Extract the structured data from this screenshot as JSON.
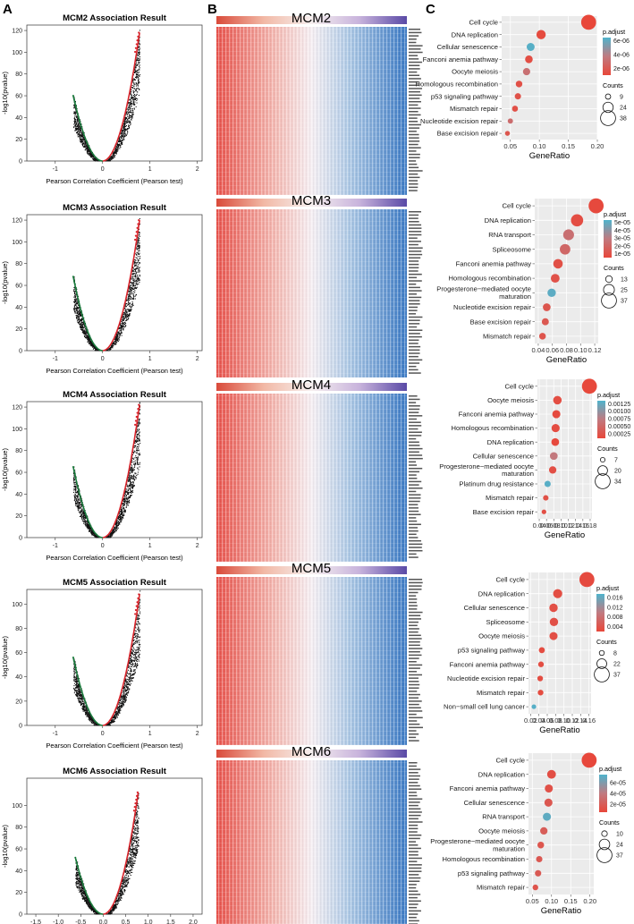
{
  "panel_labels": [
    "A",
    "B",
    "C"
  ],
  "chart_data": {
    "volcano": [
      {
        "gene": "MCM2",
        "title": "MCM2 Association Result",
        "xlabel": "Pearson Correlation Coefficient (Pearson test)",
        "ylabel": "-log10(pvalue)",
        "xlim": [
          -1.6,
          2.1
        ],
        "ylim": [
          0,
          125
        ],
        "xticks": [
          "-1",
          "0",
          "1",
          "2"
        ],
        "xtick_values": [
          -1,
          0,
          1,
          2
        ],
        "yticks": [
          0,
          20,
          40,
          60,
          80,
          100,
          120
        ],
        "red_arm_end": [
          0.78,
          118
        ],
        "green_arm_end": [
          -0.62,
          60
        ]
      },
      {
        "gene": "MCM3",
        "title": "MCM3 Association Result",
        "xlabel": "Pearson Correlation Coefficient (Pearson test)",
        "ylabel": "-log10(pvalue)",
        "xlim": [
          -1.6,
          2.1
        ],
        "ylim": [
          0,
          125
        ],
        "xticks": [
          "-1",
          "0",
          "1",
          "2"
        ],
        "xtick_values": [
          -1,
          0,
          1,
          2
        ],
        "yticks": [
          0,
          20,
          40,
          60,
          80,
          100,
          120
        ],
        "red_arm_end": [
          0.78,
          120
        ],
        "green_arm_end": [
          -0.62,
          68
        ]
      },
      {
        "gene": "MCM4",
        "title": "MCM4 Association Result",
        "xlabel": "Pearson Correlation Coefficient (Pearson test)",
        "ylabel": "-log10(pvalue)",
        "xlim": [
          -1.6,
          2.1
        ],
        "ylim": [
          0,
          125
        ],
        "xticks": [
          "-1",
          "0",
          "1",
          "2"
        ],
        "xtick_values": [
          -1,
          0,
          1,
          2
        ],
        "yticks": [
          0,
          20,
          40,
          60,
          80,
          100,
          120
        ],
        "red_arm_end": [
          0.78,
          122
        ],
        "green_arm_end": [
          -0.62,
          65
        ]
      },
      {
        "gene": "MCM5",
        "title": "MCM5 Association Result",
        "xlabel": "Pearson Correlation Coefficient (Pearson test)",
        "ylabel": "-log10(pvalue)",
        "xlim": [
          -1.6,
          2.1
        ],
        "ylim": [
          0,
          112
        ],
        "xticks": [
          "-1",
          "0",
          "1",
          "2"
        ],
        "xtick_values": [
          -1,
          0,
          1,
          2
        ],
        "yticks": [
          0,
          20,
          40,
          60,
          80,
          100
        ],
        "red_arm_end": [
          0.78,
          108
        ],
        "green_arm_end": [
          -0.62,
          56
        ]
      },
      {
        "gene": "MCM6",
        "title": "MCM6 Association Result",
        "xlabel": "Pearson Correlation Coefficient (Pearson test)",
        "ylabel": "-log10(pvalue)",
        "xlim": [
          -1.7,
          2.2
        ],
        "ylim": [
          0,
          125
        ],
        "xticks": [
          "-1.5",
          "-1.0",
          "-0.5",
          "0.0",
          "0.5",
          "1.0",
          "1.5",
          "2.0"
        ],
        "xtick_values": [
          -1.5,
          -1.0,
          -0.5,
          0.0,
          0.5,
          1.0,
          1.5,
          2.0
        ],
        "yticks": [
          0,
          20,
          40,
          60,
          80,
          100
        ],
        "red_arm_end": [
          0.78,
          112
        ],
        "green_arm_end": [
          -0.62,
          52
        ]
      }
    ],
    "heatmaps": [
      {
        "title": "MCM2"
      },
      {
        "title": "MCM3"
      },
      {
        "title": "MCM4"
      },
      {
        "title": "MCM5"
      },
      {
        "title": "MCM6"
      }
    ],
    "enrichment": [
      {
        "type": "scatter",
        "xlabel": "GeneRatio",
        "xlim": [
          0.035,
          0.2
        ],
        "xticks": [
          {
            "v": 0.05,
            "t": "0.05"
          },
          {
            "v": 0.1,
            "t": "0.10"
          },
          {
            "v": 0.15,
            "t": "0.15"
          },
          {
            "v": 0.2,
            "t": "0.20"
          }
        ],
        "padj_range": [
          1e-06,
          6.5e-06
        ],
        "padj_ticks": [
          {
            "v": 6e-06,
            "t": "6e-06"
          },
          {
            "v": 4e-06,
            "t": "4e-06"
          },
          {
            "v": 2e-06,
            "t": "2e-06"
          }
        ],
        "counts_legend": [
          9,
          24,
          38
        ],
        "count_range": [
          5,
          38
        ],
        "terms": [
          {
            "name": "Cell cycle",
            "ratio": 0.185,
            "padj": 1e-06,
            "count": 38
          },
          {
            "name": "DNA replication",
            "ratio": 0.103,
            "padj": 1.2e-06,
            "count": 21
          },
          {
            "name": "Cellular senescence",
            "ratio": 0.085,
            "padj": 6.3e-06,
            "count": 17
          },
          {
            "name": "Fanconi anemia pathway",
            "ratio": 0.082,
            "padj": 1.4e-06,
            "count": 16
          },
          {
            "name": "Oocyte meiosis",
            "ratio": 0.078,
            "padj": 3.2e-06,
            "count": 15
          },
          {
            "name": "Homologous recombination",
            "ratio": 0.065,
            "padj": 1.5e-06,
            "count": 13
          },
          {
            "name": "p53 signaling pathway",
            "ratio": 0.063,
            "padj": 1.6e-06,
            "count": 12
          },
          {
            "name": "Mismatch repair",
            "ratio": 0.058,
            "padj": 1.5e-06,
            "count": 11
          },
          {
            "name": "Nucleotide excision repair",
            "ratio": 0.05,
            "padj": 3e-06,
            "count": 9
          },
          {
            "name": "Base excision repair",
            "ratio": 0.045,
            "padj": 1.8e-06,
            "count": 8
          }
        ]
      },
      {
        "type": "scatter",
        "xlabel": "GeneRatio",
        "xlim": [
          0.035,
          0.125
        ],
        "xticks": [
          {
            "v": 0.04,
            "t": "0.04"
          },
          {
            "v": 0.06,
            "t": "0.06"
          },
          {
            "v": 0.08,
            "t": "0.08"
          },
          {
            "v": 0.1,
            "t": "0.10"
          },
          {
            "v": 0.12,
            "t": "0.12"
          }
        ],
        "padj_range": [
          5e-06,
          5.3e-05
        ],
        "padj_ticks": [
          {
            "v": 5e-05,
            "t": "5e-05"
          },
          {
            "v": 4e-05,
            "t": "4e-05"
          },
          {
            "v": 3e-05,
            "t": "3e-05"
          },
          {
            "v": 2e-05,
            "t": "2e-05"
          },
          {
            "v": 1e-05,
            "t": "1e-05"
          }
        ],
        "counts_legend": [
          13,
          25,
          37
        ],
        "count_range": [
          5,
          37
        ],
        "terms": [
          {
            "name": "Cell cycle",
            "ratio": 0.122,
            "padj": 6e-06,
            "count": 37
          },
          {
            "name": "DNA replication",
            "ratio": 0.095,
            "padj": 8e-06,
            "count": 29
          },
          {
            "name": "RNA transport",
            "ratio": 0.083,
            "padj": 2.4e-05,
            "count": 25
          },
          {
            "name": "Spliceosome",
            "ratio": 0.078,
            "padj": 2e-05,
            "count": 24
          },
          {
            "name": "Fanconi anemia pathway",
            "ratio": 0.068,
            "padj": 9e-06,
            "count": 21
          },
          {
            "name": "Homologous recombination",
            "ratio": 0.064,
            "padj": 1e-05,
            "count": 19
          },
          {
            "name": "Progesterone−mediated oocyte\nmaturation",
            "ratio": 0.059,
            "padj": 5e-05,
            "count": 18
          },
          {
            "name": "Nucleotide excision repair",
            "ratio": 0.052,
            "padj": 1.2e-05,
            "count": 16
          },
          {
            "name": "Base excision repair",
            "ratio": 0.05,
            "padj": 1.3e-05,
            "count": 14
          },
          {
            "name": "Mismatch repair",
            "ratio": 0.046,
            "padj": 1.1e-05,
            "count": 13
          }
        ]
      },
      {
        "type": "scatter",
        "xlabel": "GeneRatio",
        "xlim": [
          0.035,
          0.185
        ],
        "xticks": [
          {
            "v": 0.04,
            "t": "0.04"
          },
          {
            "v": 0.06,
            "t": "0.06"
          },
          {
            "v": 0.08,
            "t": "0.08"
          },
          {
            "v": 0.1,
            "t": "0.10"
          },
          {
            "v": 0.12,
            "t": "0.12"
          },
          {
            "v": 0.14,
            "t": "0.14"
          },
          {
            "v": 0.16,
            "t": "0.16"
          },
          {
            "v": 0.18,
            "t": "0.18"
          }
        ],
        "padj_range": [
          0.0001,
          0.00135
        ],
        "padj_ticks": [
          {
            "v": 0.00125,
            "t": "0.00125"
          },
          {
            "v": 0.001,
            "t": "0.00100"
          },
          {
            "v": 0.00075,
            "t": "0.00075"
          },
          {
            "v": 0.0005,
            "t": "0.00050"
          },
          {
            "v": 0.00025,
            "t": "0.00025"
          }
        ],
        "counts_legend": [
          7,
          20,
          34
        ],
        "count_range": [
          5,
          34
        ],
        "terms": [
          {
            "name": "Cell cycle",
            "ratio": 0.178,
            "padj": 0.00012,
            "count": 34
          },
          {
            "name": "Oocyte meiosis",
            "ratio": 0.09,
            "padj": 0.00018,
            "count": 17
          },
          {
            "name": "Fanconi anemia pathway",
            "ratio": 0.087,
            "padj": 0.00014,
            "count": 16
          },
          {
            "name": "Homologous recombination",
            "ratio": 0.085,
            "padj": 0.00016,
            "count": 16
          },
          {
            "name": "DNA replication",
            "ratio": 0.084,
            "padj": 0.00013,
            "count": 15
          },
          {
            "name": "Cellular senescence",
            "ratio": 0.08,
            "padj": 0.0007,
            "count": 15
          },
          {
            "name": "Progesterone−mediated oocyte\nmaturation",
            "ratio": 0.077,
            "padj": 0.0002,
            "count": 14
          },
          {
            "name": "Platinum drug resistance",
            "ratio": 0.063,
            "padj": 0.0013,
            "count": 11
          },
          {
            "name": "Mismatch repair",
            "ratio": 0.058,
            "padj": 0.00022,
            "count": 9
          },
          {
            "name": "Base excision repair",
            "ratio": 0.053,
            "padj": 0.0002,
            "count": 7
          }
        ]
      },
      {
        "type": "scatter",
        "xlabel": "GeneRatio",
        "xlim": [
          0.015,
          0.165
        ],
        "xticks": [
          {
            "v": 0.02,
            "t": "0.02"
          },
          {
            "v": 0.04,
            "t": "0.04"
          },
          {
            "v": 0.06,
            "t": "0.06"
          },
          {
            "v": 0.08,
            "t": "0.08"
          },
          {
            "v": 0.1,
            "t": "0.10"
          },
          {
            "v": 0.12,
            "t": "0.12"
          },
          {
            "v": 0.14,
            "t": "0.14"
          },
          {
            "v": 0.16,
            "t": "0.16"
          }
        ],
        "padj_range": [
          0.002,
          0.0175
        ],
        "padj_ticks": [
          {
            "v": 0.016,
            "t": "0.016"
          },
          {
            "v": 0.012,
            "t": "0.012"
          },
          {
            "v": 0.008,
            "t": "0.008"
          },
          {
            "v": 0.004,
            "t": "0.004"
          }
        ],
        "counts_legend": [
          8,
          22,
          37
        ],
        "count_range": [
          5,
          37
        ],
        "terms": [
          {
            "name": "Cell cycle",
            "ratio": 0.155,
            "padj": 0.0025,
            "count": 37
          },
          {
            "name": "DNA replication",
            "ratio": 0.085,
            "padj": 0.003,
            "count": 20
          },
          {
            "name": "Cellular senescence",
            "ratio": 0.075,
            "padj": 0.0032,
            "count": 18
          },
          {
            "name": "Spliceosome",
            "ratio": 0.076,
            "padj": 0.0034,
            "count": 18
          },
          {
            "name": "Oocyte meiosis",
            "ratio": 0.075,
            "padj": 0.0031,
            "count": 17
          },
          {
            "name": "p53 signaling pathway",
            "ratio": 0.047,
            "padj": 0.0028,
            "count": 11
          },
          {
            "name": "Fanconi anemia pathway",
            "ratio": 0.045,
            "padj": 0.003,
            "count": 10
          },
          {
            "name": "Nucleotide excision repair",
            "ratio": 0.043,
            "padj": 0.0029,
            "count": 10
          },
          {
            "name": "Mismatch repair",
            "ratio": 0.044,
            "padj": 0.0027,
            "count": 10
          },
          {
            "name": "Non−small cell lung cancer",
            "ratio": 0.028,
            "padj": 0.017,
            "count": 7
          }
        ]
      },
      {
        "type": "scatter",
        "xlabel": "GeneRatio",
        "xlim": [
          0.04,
          0.21
        ],
        "xticks": [
          {
            "v": 0.05,
            "t": "0.05"
          },
          {
            "v": 0.1,
            "t": "0.10"
          },
          {
            "v": 0.15,
            "t": "0.15"
          },
          {
            "v": 0.2,
            "t": "0.20"
          }
        ],
        "padj_range": [
          5e-06,
          7.5e-05
        ],
        "padj_ticks": [
          {
            "v": 6e-05,
            "t": "6e-05"
          },
          {
            "v": 4e-05,
            "t": "4e-05"
          },
          {
            "v": 2e-05,
            "t": "2e-05"
          }
        ],
        "counts_legend": [
          10,
          24,
          37
        ],
        "count_range": [
          5,
          37
        ],
        "terms": [
          {
            "name": "Cell cycle",
            "ratio": 0.198,
            "padj": 6e-06,
            "count": 37
          },
          {
            "name": "DNA replication",
            "ratio": 0.1,
            "padj": 1e-05,
            "count": 19
          },
          {
            "name": "Fanconi anemia pathway",
            "ratio": 0.093,
            "padj": 1.2e-05,
            "count": 17
          },
          {
            "name": "Cellular senescence",
            "ratio": 0.092,
            "padj": 1.6e-05,
            "count": 17
          },
          {
            "name": "RNA transport",
            "ratio": 0.088,
            "padj": 7e-05,
            "count": 17
          },
          {
            "name": "Oocyte meiosis",
            "ratio": 0.08,
            "padj": 2e-05,
            "count": 15
          },
          {
            "name": "Progesterone−mediated oocyte\nmaturation",
            "ratio": 0.072,
            "padj": 1.5e-05,
            "count": 13
          },
          {
            "name": "Homologous recombination",
            "ratio": 0.068,
            "padj": 1.7e-05,
            "count": 12
          },
          {
            "name": "p53 signaling pathway",
            "ratio": 0.065,
            "padj": 1.8e-05,
            "count": 12
          },
          {
            "name": "Mismatch repair",
            "ratio": 0.058,
            "padj": 1.4e-05,
            "count": 10
          }
        ]
      }
    ],
    "legend_titles": {
      "padj": "p.adjust",
      "counts": "Counts"
    }
  }
}
